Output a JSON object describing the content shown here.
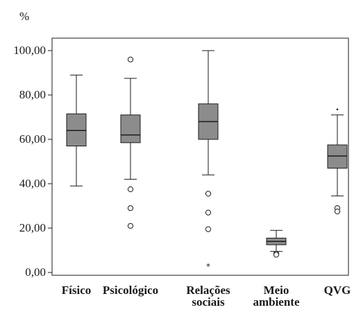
{
  "chart_data": {
    "type": "box",
    "ylabel": "%",
    "ylim": [
      0,
      100
    ],
    "ytick_labels": [
      "0,00",
      "20,00",
      "40,00",
      "60,00",
      "80,00",
      "100,00"
    ],
    "ytick_values": [
      0,
      20,
      40,
      60,
      80,
      100
    ],
    "grid": false,
    "box_color": "#8c8c8c",
    "line_color": "#1a1a1a",
    "categories": [
      {
        "label": [
          "Físico"
        ],
        "whisker_low": 39,
        "q1": 57,
        "median": 64,
        "q3": 71.5,
        "whisker_high": 89,
        "outliers": [],
        "extremes": []
      },
      {
        "label": [
          "Psicológico"
        ],
        "whisker_low": 42,
        "q1": 58.5,
        "median": 62,
        "q3": 71,
        "whisker_high": 87.5,
        "outliers": [
          96,
          37.5,
          29,
          21
        ],
        "extremes": []
      },
      {
        "label": [
          "Relações",
          "sociais"
        ],
        "whisker_low": 44,
        "q1": 60,
        "median": 68,
        "q3": 76,
        "whisker_high": 100,
        "outliers": [
          35.5,
          27,
          19.5
        ],
        "extremes": [
          3
        ]
      },
      {
        "label": [
          "Meio",
          "ambiente"
        ],
        "whisker_low": 9.5,
        "q1": 12.5,
        "median": 14,
        "q3": 15.5,
        "whisker_high": 19,
        "outliers": [
          8.5,
          8
        ],
        "extremes": []
      },
      {
        "label": [
          "QVG"
        ],
        "whisker_low": 34.5,
        "q1": 47,
        "median": 52.5,
        "q3": 57.5,
        "whisker_high": 71,
        "outliers": [
          29,
          27.5
        ],
        "extremes": [
          73.5
        ]
      }
    ]
  }
}
